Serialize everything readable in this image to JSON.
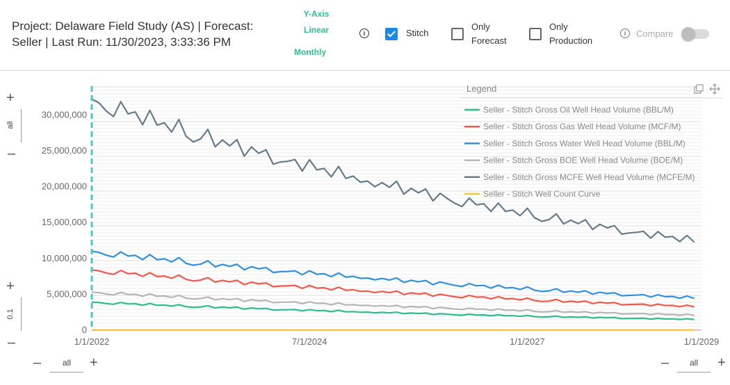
{
  "header": {
    "title": "Project: Delaware Field Study (AS) | Forecast: Seller | Last Run: 11/30/2023, 3:33:36 PM",
    "y_axis_label": "Y-Axis",
    "y_axis_scale": "Linear",
    "interval": "Monthly",
    "stitch_label": "Stitch",
    "only_forecast_label": "Only Forecast",
    "only_production_label": "Only Production",
    "compare_label": "Compare"
  },
  "controls": {
    "top_left_range": "all",
    "bottom_left_range": "0.1",
    "x_left_range": "all",
    "x_right_range": "all"
  },
  "legend": {
    "title": "Legend"
  },
  "colors": {
    "accent": "#2bbd8e",
    "stitch_line": "#4fc6c6"
  },
  "chart_data": {
    "type": "line",
    "x_start": "2022-01",
    "x_end": "2028-12",
    "x_ticks": [
      "1/1/2022",
      "7/1/2024",
      "1/1/2027",
      "1/1/2029"
    ],
    "y_ticks": [
      "0",
      "5,000,000",
      "10,000,000",
      "15,000,000",
      "20,000,000",
      "25,000,000",
      "30,000,000"
    ],
    "ylim": [
      0,
      34000000
    ],
    "grid": true,
    "legend_position": "top-right",
    "series": [
      {
        "name": "Seller - Stitch Gross Oil Well Head Volume (BBL/M)",
        "color": "#2bbd8e",
        "start": 3900000,
        "end": 1500000
      },
      {
        "name": "Seller - Stitch Gross Gas Well Head Volume (MCF/M)",
        "color": "#f4574a",
        "start": 8400000,
        "end": 3300000
      },
      {
        "name": "Seller - Stitch Gross Water Well Head Volume (BBL/M)",
        "color": "#2f8fe0",
        "start": 11000000,
        "end": 4500000
      },
      {
        "name": "Seller - Stitch Gross BOE Well Head Volume (BOE/M)",
        "color": "#b5b5b5",
        "start": 5300000,
        "end": 2100000
      },
      {
        "name": "Seller - Stitch Gross MCFE Well Head Volume (MCFE/M)",
        "color": "#667b8a",
        "start": 32200000,
        "end": 12500000
      },
      {
        "name": "Seller - Stitch Well Count Curve",
        "color": "#f5c23c",
        "start": 0,
        "end": 0
      }
    ]
  }
}
